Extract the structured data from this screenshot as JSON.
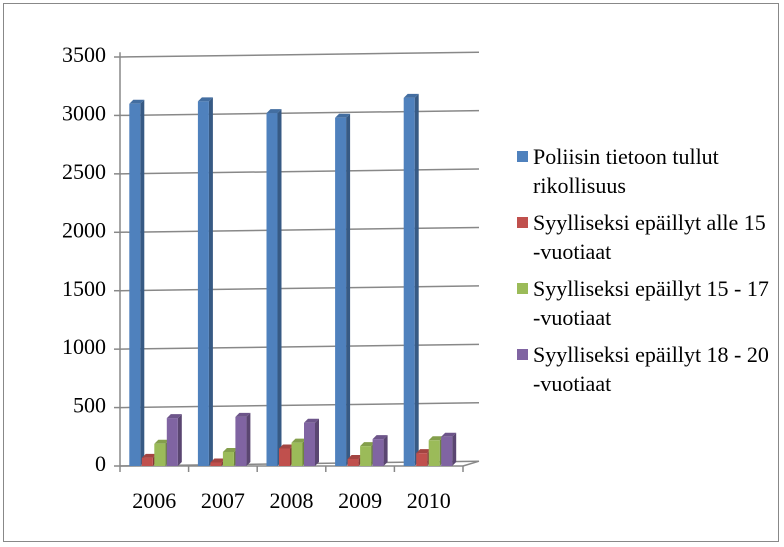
{
  "chart_data": {
    "type": "bar",
    "categories": [
      "2006",
      "2007",
      "2008",
      "2009",
      "2010"
    ],
    "series": [
      {
        "name": "Poliisin tietoon tullut rikollisuus",
        "color": "#4f81bd",
        "values": [
          3100,
          3120,
          3020,
          2980,
          3150
        ]
      },
      {
        "name": "Syylliseksi epäillyt alle 15 -vuotiaat",
        "color": "#c0504d",
        "values": [
          70,
          30,
          150,
          60,
          110
        ]
      },
      {
        "name": "Syylliseksi epäillyt 15 - 17 -vuotiaat",
        "color": "#9bbb59",
        "values": [
          190,
          120,
          200,
          170,
          220
        ]
      },
      {
        "name": "Syylliseksi epäillyt 18 - 20 -vuotiaat",
        "color": "#8064a2",
        "values": [
          410,
          420,
          370,
          230,
          250
        ]
      }
    ],
    "ylim": [
      0,
      3500
    ],
    "yticks": [
      0,
      500,
      1000,
      1500,
      2000,
      2500,
      3000,
      3500
    ],
    "grid": true,
    "legend": "right"
  }
}
